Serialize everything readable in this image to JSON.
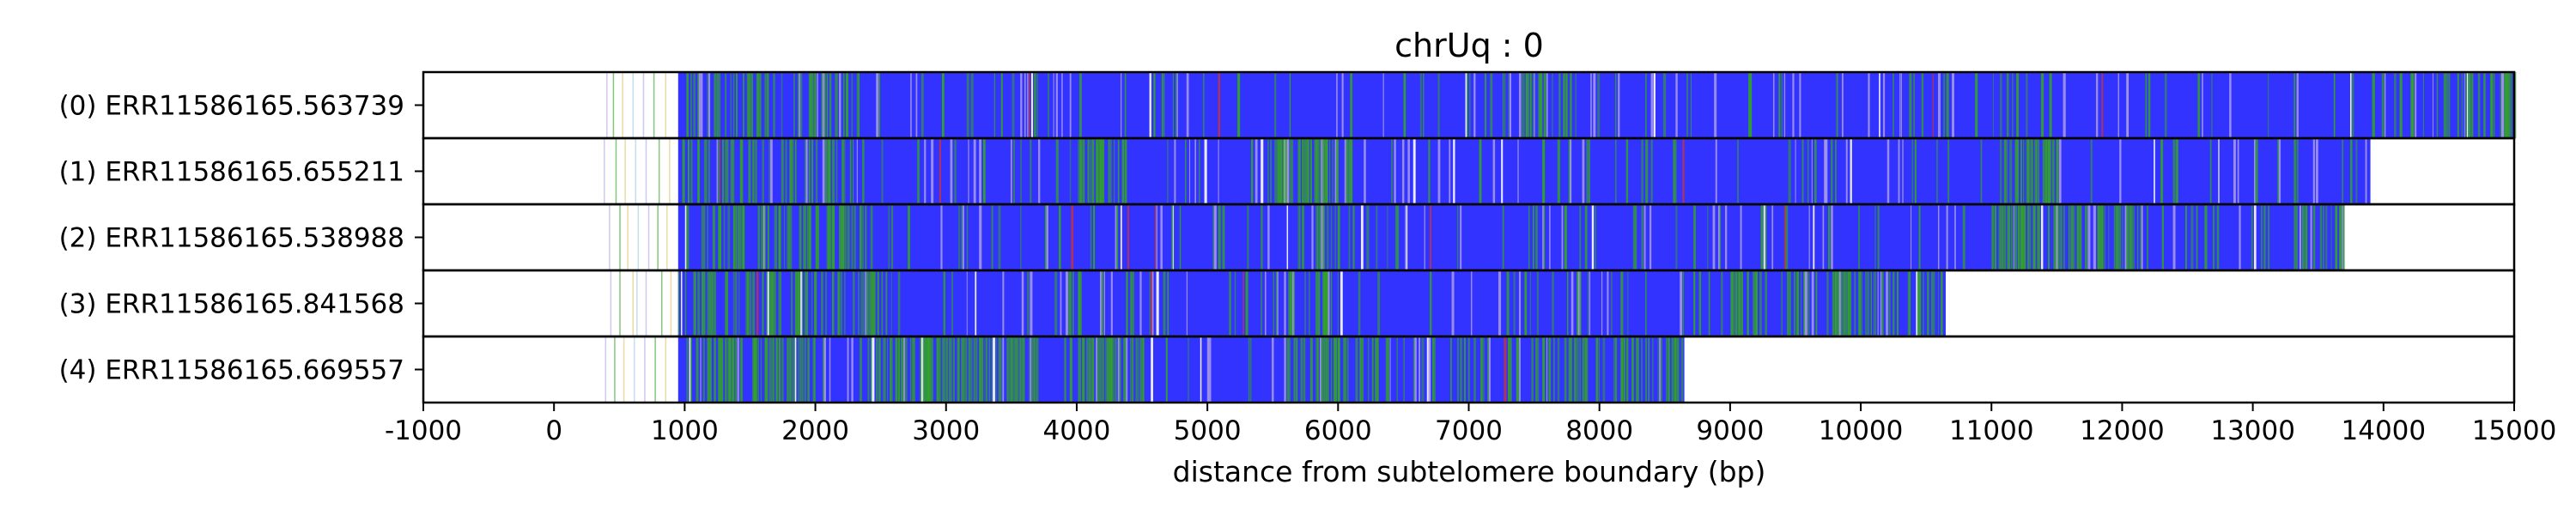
{
  "chart_data": {
    "type": "heatmap",
    "title": "chrUq : 0",
    "xlabel": "distance from subtelomere boundary (bp)",
    "ylabel": "",
    "xlim": [
      -1000,
      15000
    ],
    "xticks": [
      -1000,
      0,
      1000,
      2000,
      3000,
      4000,
      5000,
      6000,
      7000,
      8000,
      9000,
      10000,
      11000,
      12000,
      13000,
      14000,
      15000
    ],
    "xtick_labels": [
      "-1000",
      "0",
      "1000",
      "2000",
      "3000",
      "4000",
      "5000",
      "6000",
      "7000",
      "8000",
      "9000",
      "10000",
      "11000",
      "12000",
      "13000",
      "14000",
      "15000"
    ],
    "grid": "vertical dashed at x ticks",
    "colors": {
      "repeat": "#3333ff",
      "variant": "#33a02c",
      "minor": "#b0a3e6",
      "accent": "#cc3333",
      "gap": "#ffffff",
      "edge": "#000000"
    },
    "reads": [
      {
        "label": "(0) ERR11586165.563739",
        "start": 950,
        "end": 15000,
        "green_zones": [
          [
            1000,
            2400,
            0.35
          ],
          [
            7400,
            7800,
            0.45
          ],
          [
            14200,
            15000,
            0.3
          ]
        ],
        "prefix_lines": [
          400,
          450,
          520,
          600,
          680,
          760,
          850
        ]
      },
      {
        "label": "(1) ERR11586165.655211",
        "start": 950,
        "end": 13900,
        "green_zones": [
          [
            1000,
            2300,
            0.3
          ],
          [
            4000,
            4300,
            0.75
          ],
          [
            5500,
            6100,
            0.5
          ],
          [
            11000,
            11500,
            0.4
          ]
        ],
        "prefix_lines": [
          380,
          470,
          540,
          620,
          700,
          800,
          880
        ]
      },
      {
        "label": "(2) ERR11586165.538988",
        "start": 950,
        "end": 13700,
        "green_zones": [
          [
            1000,
            2600,
            0.35
          ],
          [
            5700,
            6000,
            0.4
          ],
          [
            11000,
            12200,
            0.45
          ],
          [
            13300,
            13700,
            0.35
          ]
        ],
        "prefix_lines": [
          420,
          500,
          560,
          640,
          720,
          790,
          860
        ]
      },
      {
        "label": "(3) ERR11586165.841568",
        "start": 950,
        "end": 10650,
        "green_zones": [
          [
            1000,
            2600,
            0.35
          ],
          [
            5600,
            6000,
            0.45
          ],
          [
            9000,
            10650,
            0.35
          ]
        ],
        "prefix_lines": [
          430,
          500,
          600,
          630,
          700,
          820,
          890
        ]
      },
      {
        "label": "(4) ERR11586165.669557",
        "start": 950,
        "end": 8650,
        "green_zones": [
          [
            1000,
            2000,
            0.4
          ],
          [
            2400,
            3700,
            0.6
          ],
          [
            4000,
            4500,
            0.65
          ],
          [
            5600,
            6300,
            0.5
          ],
          [
            6300,
            8650,
            0.35
          ]
        ],
        "prefix_lines": [
          390,
          460,
          530,
          610,
          690,
          770,
          850
        ]
      }
    ]
  }
}
